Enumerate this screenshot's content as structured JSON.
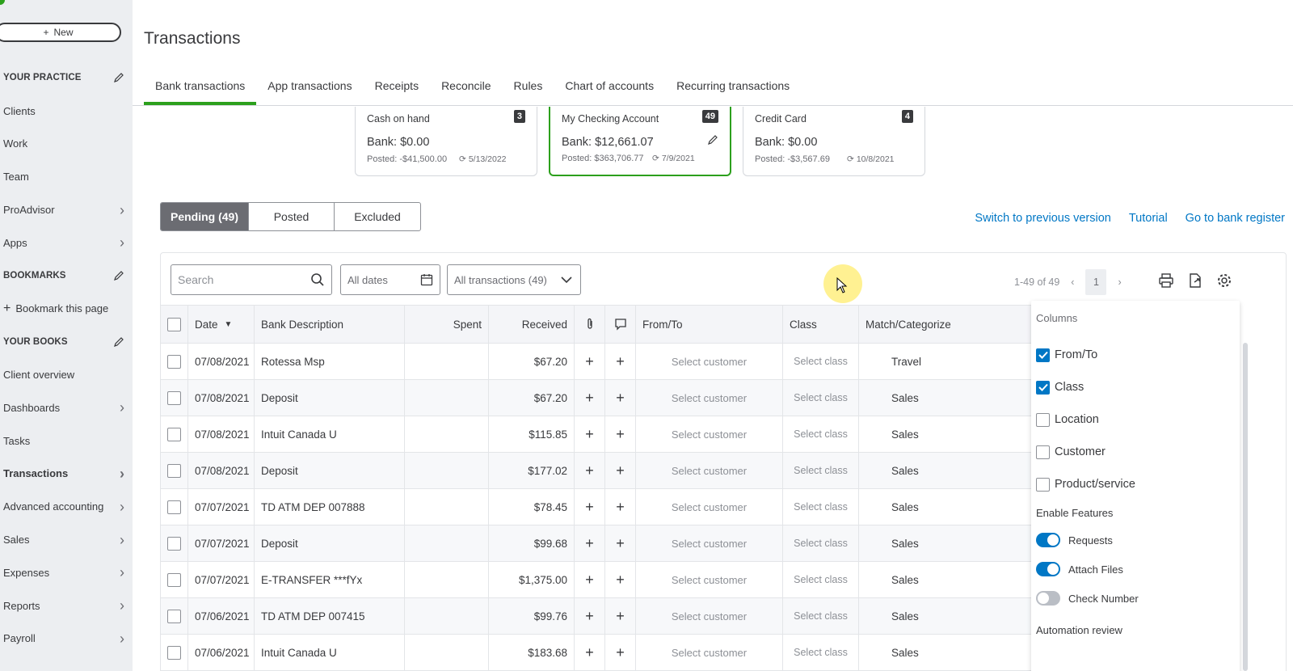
{
  "sidebar": {
    "new_label": "New",
    "items": [
      {
        "label": "YOUR PRACTICE",
        "type": "section",
        "icon": "pencil-icon"
      },
      {
        "label": "Clients",
        "type": "link"
      },
      {
        "label": "Work",
        "type": "link"
      },
      {
        "label": "Team",
        "type": "link"
      },
      {
        "label": "ProAdvisor",
        "type": "expand"
      },
      {
        "label": "Apps",
        "type": "expand"
      },
      {
        "label": "BOOKMARKS",
        "type": "section",
        "icon": "pencil-icon"
      },
      {
        "label": "Bookmark this page",
        "type": "add"
      },
      {
        "label": "YOUR BOOKS",
        "type": "section",
        "icon": "pencil-icon"
      },
      {
        "label": "Client overview",
        "type": "link"
      },
      {
        "label": "Dashboards",
        "type": "expand"
      },
      {
        "label": "Tasks",
        "type": "link"
      },
      {
        "label": "Transactions",
        "type": "expand",
        "active": true
      },
      {
        "label": "Advanced accounting",
        "type": "expand"
      },
      {
        "label": "Sales",
        "type": "expand"
      },
      {
        "label": "Expenses",
        "type": "expand"
      },
      {
        "label": "Reports",
        "type": "expand"
      },
      {
        "label": "Payroll",
        "type": "expand"
      }
    ]
  },
  "header": {
    "title": "Transactions",
    "tabs": [
      "Bank transactions",
      "App transactions",
      "Receipts",
      "Reconcile",
      "Rules",
      "Chart of accounts",
      "Recurring transactions"
    ]
  },
  "accounts": [
    {
      "name": "Cash on hand",
      "count": "3",
      "bank": "Bank: $0.00",
      "posted": "Posted: -$41,500.00",
      "date": "5/13/2022"
    },
    {
      "name": "My Checking Account",
      "count": "49",
      "bank": "Bank: $12,661.07",
      "posted": "Posted: $363,706.77",
      "date": "7/9/2021"
    },
    {
      "name": "Credit Card",
      "count": "4",
      "bank": "Bank: $0.00",
      "posted": "Posted: -$3,567.69",
      "date": "10/8/2021"
    }
  ],
  "filters": {
    "segments": [
      "Pending (49)",
      "Posted",
      "Excluded"
    ],
    "links": [
      "Switch to previous version",
      "Tutorial",
      "Go to bank register"
    ],
    "search_placeholder": "Search",
    "dates_label": "All dates",
    "transactions_label": "All transactions (49)",
    "range": "1-49 of 49",
    "page": "1"
  },
  "table": {
    "headers": {
      "date": "Date",
      "desc": "Bank Description",
      "spent": "Spent",
      "received": "Received",
      "from": "From/To",
      "class": "Class",
      "match": "Match/Categorize"
    },
    "rows": [
      {
        "date": "07/08/2021",
        "desc": "Rotessa Msp",
        "spent": "",
        "received": "$67.20",
        "from": "Select customer",
        "class": "Select class",
        "match": "Travel"
      },
      {
        "date": "07/08/2021",
        "desc": "Deposit",
        "spent": "",
        "received": "$67.20",
        "from": "Select customer",
        "class": "Select class",
        "match": "Sales"
      },
      {
        "date": "07/08/2021",
        "desc": "Intuit Canada U",
        "spent": "",
        "received": "$115.85",
        "from": "Select customer",
        "class": "Select class",
        "match": "Sales"
      },
      {
        "date": "07/08/2021",
        "desc": "Deposit",
        "spent": "",
        "received": "$177.02",
        "from": "Select customer",
        "class": "Select class",
        "match": "Sales"
      },
      {
        "date": "07/07/2021",
        "desc": "TD ATM DEP 007888",
        "spent": "",
        "received": "$78.45",
        "from": "Select customer",
        "class": "Select class",
        "match": "Sales"
      },
      {
        "date": "07/07/2021",
        "desc": "Deposit",
        "spent": "",
        "received": "$99.68",
        "from": "Select customer",
        "class": "Select class",
        "match": "Sales"
      },
      {
        "date": "07/07/2021",
        "desc": "E-TRANSFER ***fYx",
        "spent": "",
        "received": "$1,375.00",
        "from": "Select customer",
        "class": "Select class",
        "match": "Sales"
      },
      {
        "date": "07/06/2021",
        "desc": "TD ATM DEP 007415",
        "spent": "",
        "received": "$99.76",
        "from": "Select customer",
        "class": "Select class",
        "match": "Sales"
      },
      {
        "date": "07/06/2021",
        "desc": "Intuit Canada U",
        "spent": "",
        "received": "$183.68",
        "from": "Select customer",
        "class": "Select class",
        "match": "Sales"
      }
    ]
  },
  "columns_menu": {
    "title": "Columns",
    "options": [
      {
        "label": "From/To",
        "checked": true
      },
      {
        "label": "Class",
        "checked": true
      },
      {
        "label": "Location",
        "checked": false
      },
      {
        "label": "Customer",
        "checked": false
      },
      {
        "label": "Product/service",
        "checked": false
      }
    ],
    "features_title": "Enable Features",
    "features": [
      {
        "label": "Requests",
        "on": true
      },
      {
        "label": "Attach Files",
        "on": true
      },
      {
        "label": "Check Number",
        "on": false
      }
    ],
    "automation_title": "Automation review"
  },
  "colors": {
    "accent_green": "#2ca01c",
    "link_blue": "#0077c5",
    "text": "#393a3d"
  }
}
